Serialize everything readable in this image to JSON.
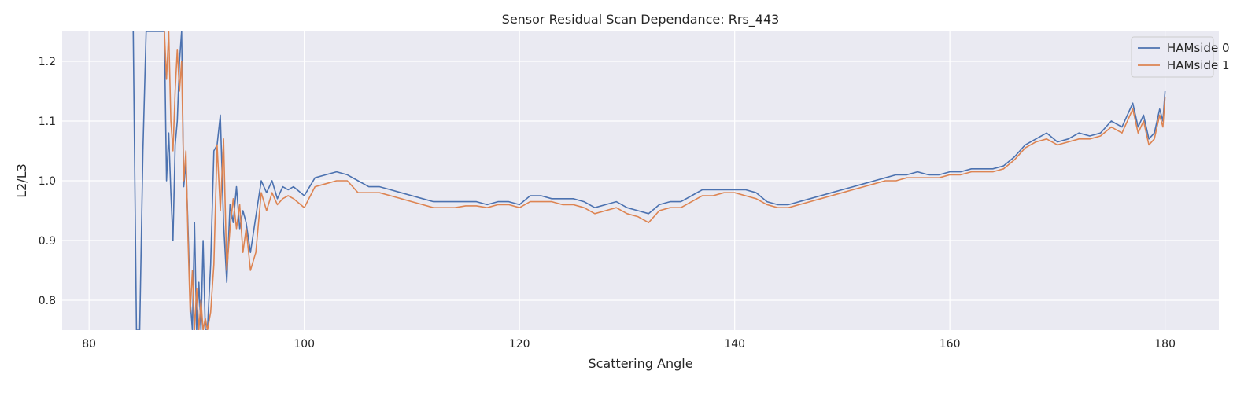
{
  "chart_data": {
    "type": "line",
    "title": "Sensor Residual Scan Dependance: Rrs_443",
    "xlabel": "Scattering Angle",
    "ylabel": "L2/L3",
    "xlim": [
      77.5,
      185
    ],
    "ylim": [
      0.75,
      1.25
    ],
    "xticks": [
      80,
      100,
      120,
      140,
      160,
      180
    ],
    "yticks": [
      0.8,
      0.9,
      1.0,
      1.1,
      1.2
    ],
    "xtick_labels": [
      "80",
      "100",
      "120",
      "140",
      "160",
      "180"
    ],
    "ytick_labels": [
      "0.8",
      "0.9",
      "1.0",
      "1.1",
      "1.2"
    ],
    "grid": true,
    "legend_position": "top-right",
    "series": [
      {
        "name": "HAMside 0",
        "color": "#4c72b0",
        "x": [
          84.1,
          84.4,
          84.7,
          85.0,
          85.3,
          87.0,
          87.2,
          87.4,
          87.6,
          87.8,
          88.0,
          88.2,
          88.4,
          88.6,
          88.8,
          89.0,
          89.2,
          89.4,
          89.6,
          89.8,
          90.0,
          90.2,
          90.4,
          90.6,
          90.8,
          91.0,
          91.3,
          91.6,
          91.9,
          92.2,
          92.5,
          92.8,
          93.1,
          93.4,
          93.7,
          94.0,
          94.3,
          94.6,
          95.0,
          95.5,
          96.0,
          96.5,
          97.0,
          97.5,
          98.0,
          98.5,
          99.0,
          100.0,
          101.0,
          102.0,
          103.0,
          104.0,
          105.0,
          106.0,
          107.0,
          108.0,
          109.0,
          110.0,
          111.0,
          112.0,
          113.0,
          114.0,
          115.0,
          116.0,
          117.0,
          118.0,
          119.0,
          120.0,
          121.0,
          122.0,
          123.0,
          124.0,
          125.0,
          126.0,
          127.0,
          128.0,
          129.0,
          130.0,
          131.0,
          132.0,
          133.0,
          134.0,
          135.0,
          136.0,
          137.0,
          138.0,
          139.0,
          140.0,
          141.0,
          142.0,
          143.0,
          144.0,
          145.0,
          146.0,
          147.0,
          148.0,
          149.0,
          150.0,
          151.0,
          152.0,
          153.0,
          154.0,
          155.0,
          156.0,
          157.0,
          158.0,
          159.0,
          160.0,
          161.0,
          162.0,
          163.0,
          164.0,
          165.0,
          166.0,
          167.0,
          168.0,
          169.0,
          170.0,
          171.0,
          172.0,
          173.0,
          174.0,
          175.0,
          176.0,
          177.0,
          177.5,
          178.0,
          178.5,
          179.0,
          179.5,
          179.8,
          180.0
        ],
        "values": [
          1.25,
          0.75,
          0.75,
          1.05,
          1.25,
          1.25,
          1.0,
          1.08,
          0.98,
          0.9,
          1.06,
          1.1,
          1.2,
          1.25,
          0.99,
          1.03,
          0.92,
          0.8,
          0.75,
          0.93,
          0.75,
          0.83,
          0.75,
          0.9,
          0.75,
          0.75,
          0.86,
          1.05,
          1.06,
          1.11,
          0.93,
          0.83,
          0.96,
          0.93,
          0.99,
          0.92,
          0.95,
          0.93,
          0.88,
          0.94,
          1.0,
          0.98,
          1.0,
          0.97,
          0.99,
          0.985,
          0.99,
          0.975,
          1.005,
          1.01,
          1.015,
          1.01,
          1.0,
          0.99,
          0.99,
          0.985,
          0.98,
          0.975,
          0.97,
          0.965,
          0.965,
          0.965,
          0.965,
          0.965,
          0.96,
          0.965,
          0.965,
          0.96,
          0.975,
          0.975,
          0.97,
          0.97,
          0.97,
          0.965,
          0.955,
          0.96,
          0.965,
          0.955,
          0.95,
          0.945,
          0.96,
          0.965,
          0.965,
          0.975,
          0.985,
          0.985,
          0.985,
          0.985,
          0.985,
          0.98,
          0.965,
          0.96,
          0.96,
          0.965,
          0.97,
          0.975,
          0.98,
          0.985,
          0.99,
          0.995,
          1.0,
          1.005,
          1.01,
          1.01,
          1.015,
          1.01,
          1.01,
          1.015,
          1.015,
          1.02,
          1.02,
          1.02,
          1.025,
          1.04,
          1.06,
          1.07,
          1.08,
          1.065,
          1.07,
          1.08,
          1.075,
          1.08,
          1.1,
          1.09,
          1.13,
          1.09,
          1.11,
          1.07,
          1.08,
          1.12,
          1.1,
          1.15
        ]
      },
      {
        "name": "HAMside 1",
        "color": "#dd8452",
        "x": [
          87.0,
          87.2,
          87.4,
          87.6,
          87.8,
          88.0,
          88.2,
          88.4,
          88.6,
          88.8,
          89.0,
          89.2,
          89.4,
          89.6,
          89.8,
          90.0,
          90.2,
          90.4,
          90.6,
          90.8,
          91.0,
          91.3,
          91.6,
          91.9,
          92.2,
          92.5,
          92.8,
          93.1,
          93.4,
          93.7,
          94.0,
          94.3,
          94.6,
          95.0,
          95.5,
          96.0,
          96.5,
          97.0,
          97.5,
          98.0,
          98.5,
          99.0,
          100.0,
          101.0,
          102.0,
          103.0,
          104.0,
          105.0,
          106.0,
          107.0,
          108.0,
          109.0,
          110.0,
          111.0,
          112.0,
          113.0,
          114.0,
          115.0,
          116.0,
          117.0,
          118.0,
          119.0,
          120.0,
          121.0,
          122.0,
          123.0,
          124.0,
          125.0,
          126.0,
          127.0,
          128.0,
          129.0,
          130.0,
          131.0,
          132.0,
          133.0,
          134.0,
          135.0,
          136.0,
          137.0,
          138.0,
          139.0,
          140.0,
          141.0,
          142.0,
          143.0,
          144.0,
          145.0,
          146.0,
          147.0,
          148.0,
          149.0,
          150.0,
          151.0,
          152.0,
          153.0,
          154.0,
          155.0,
          156.0,
          157.0,
          158.0,
          159.0,
          160.0,
          161.0,
          162.0,
          163.0,
          164.0,
          165.0,
          166.0,
          167.0,
          168.0,
          169.0,
          170.0,
          171.0,
          172.0,
          173.0,
          174.0,
          175.0,
          176.0,
          177.0,
          177.5,
          178.0,
          178.5,
          179.0,
          179.5,
          179.8,
          180.0
        ],
        "values": [
          1.25,
          1.17,
          1.25,
          1.1,
          1.05,
          1.15,
          1.22,
          1.15,
          1.2,
          1.0,
          1.05,
          0.9,
          0.78,
          0.85,
          0.75,
          0.82,
          0.75,
          0.8,
          0.75,
          0.77,
          0.75,
          0.78,
          0.86,
          1.06,
          0.95,
          1.07,
          0.85,
          0.92,
          0.97,
          0.92,
          0.96,
          0.88,
          0.92,
          0.85,
          0.88,
          0.98,
          0.95,
          0.98,
          0.96,
          0.97,
          0.975,
          0.97,
          0.955,
          0.99,
          0.995,
          1.0,
          1.0,
          0.98,
          0.98,
          0.98,
          0.975,
          0.97,
          0.965,
          0.96,
          0.955,
          0.955,
          0.955,
          0.958,
          0.958,
          0.955,
          0.96,
          0.96,
          0.955,
          0.965,
          0.965,
          0.965,
          0.96,
          0.96,
          0.955,
          0.945,
          0.95,
          0.955,
          0.945,
          0.94,
          0.93,
          0.95,
          0.955,
          0.955,
          0.965,
          0.975,
          0.975,
          0.98,
          0.98,
          0.975,
          0.97,
          0.96,
          0.955,
          0.955,
          0.96,
          0.965,
          0.97,
          0.975,
          0.98,
          0.985,
          0.99,
          0.995,
          1.0,
          1.0,
          1.005,
          1.005,
          1.005,
          1.005,
          1.01,
          1.01,
          1.015,
          1.015,
          1.015,
          1.02,
          1.035,
          1.055,
          1.065,
          1.07,
          1.06,
          1.065,
          1.07,
          1.07,
          1.075,
          1.09,
          1.08,
          1.12,
          1.08,
          1.1,
          1.06,
          1.07,
          1.11,
          1.09,
          1.14
        ]
      }
    ]
  }
}
